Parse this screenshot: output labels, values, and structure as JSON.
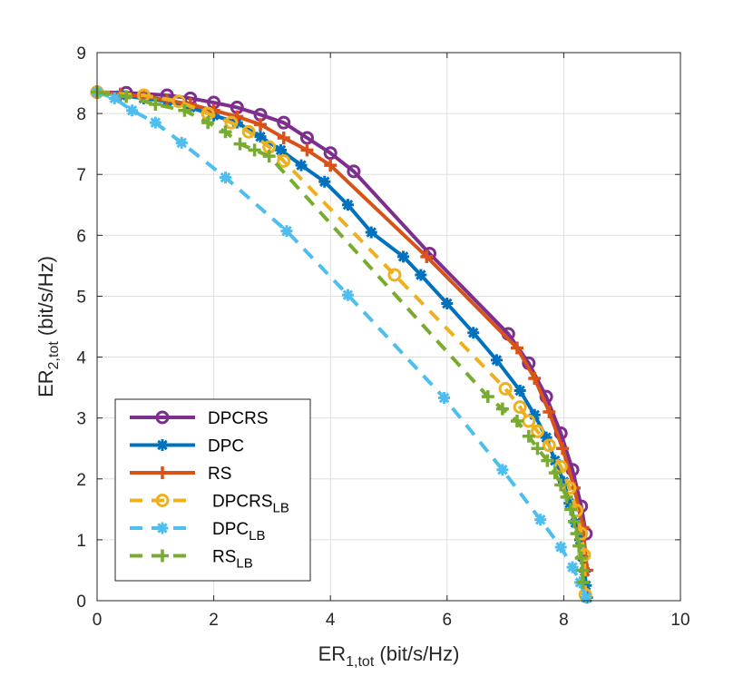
{
  "chart_data": {
    "type": "line",
    "title": "",
    "xlabel": {
      "main": "ER",
      "sub": "1,tot",
      "unit": " (bit/s/Hz)"
    },
    "ylabel": {
      "main": "ER",
      "sub": "2,tot",
      "unit": " (bit/s/Hz)"
    },
    "xlim": [
      0,
      10
    ],
    "ylim": [
      0,
      9
    ],
    "xticks": [
      "0",
      "2",
      "4",
      "6",
      "8",
      "10"
    ],
    "yticks": [
      "0",
      "1",
      "2",
      "3",
      "4",
      "5",
      "6",
      "7",
      "8",
      "9"
    ],
    "grid": true,
    "legend_position": "bottom-left",
    "series": [
      {
        "name": "DPCRS",
        "sub": "",
        "color": "#7E2F8E",
        "marker": "circle",
        "dashed": false,
        "x": [
          0.0,
          0.5,
          1.2,
          1.6,
          2.0,
          2.4,
          2.8,
          3.2,
          3.6,
          4.0,
          4.4,
          5.7,
          7.05,
          7.4,
          7.7,
          7.95,
          8.15,
          8.3,
          8.38
        ],
        "y": [
          8.35,
          8.34,
          8.3,
          8.25,
          8.18,
          8.1,
          7.98,
          7.85,
          7.6,
          7.35,
          7.05,
          5.7,
          4.38,
          3.9,
          3.35,
          2.75,
          2.15,
          1.55,
          1.1
        ]
      },
      {
        "name": "DPC",
        "sub": "",
        "color": "#0072BD",
        "marker": "asterisk",
        "dashed": false,
        "x": [
          0.0,
          0.4,
          0.8,
          1.2,
          1.6,
          2.0,
          2.4,
          2.8,
          3.15,
          3.5,
          3.9,
          4.3,
          4.7,
          5.25,
          5.55,
          6.0,
          6.45,
          6.85,
          7.25,
          7.5,
          7.7,
          7.85,
          8.0,
          8.1,
          8.2,
          8.28,
          8.32,
          8.36,
          8.38,
          8.4
        ],
        "y": [
          8.35,
          8.3,
          8.25,
          8.2,
          8.1,
          7.97,
          7.85,
          7.62,
          7.4,
          7.15,
          6.88,
          6.5,
          6.05,
          5.65,
          5.35,
          4.88,
          4.4,
          3.95,
          3.45,
          3.05,
          2.68,
          2.3,
          1.95,
          1.6,
          1.28,
          1.0,
          0.72,
          0.48,
          0.25,
          0.05
        ]
      },
      {
        "name": "RS",
        "sub": "",
        "color": "#D95319",
        "marker": "plus",
        "dashed": false,
        "x": [
          0.0,
          0.4,
          0.8,
          1.2,
          1.6,
          2.0,
          2.4,
          2.8,
          3.2,
          3.6,
          4.0,
          5.65,
          7.2,
          7.5,
          7.75,
          7.98,
          8.18,
          8.33,
          8.4
        ],
        "y": [
          8.35,
          8.32,
          8.28,
          8.22,
          8.15,
          8.05,
          7.95,
          7.82,
          7.6,
          7.4,
          7.15,
          5.65,
          4.15,
          3.65,
          3.1,
          2.5,
          1.85,
          1.2,
          0.5
        ]
      },
      {
        "name": "DPCRS",
        "sub": "LB",
        "color": "#EDB120",
        "marker": "circle",
        "dashed": true,
        "x": [
          0.0,
          0.8,
          1.4,
          1.9,
          2.3,
          2.6,
          2.95,
          3.2,
          5.1,
          7.0,
          7.25,
          7.4,
          7.55,
          7.75,
          7.95,
          8.1,
          8.22,
          8.3,
          8.35,
          8.37
        ],
        "y": [
          8.35,
          8.3,
          8.2,
          8.0,
          7.85,
          7.7,
          7.45,
          7.22,
          5.35,
          3.48,
          3.18,
          2.95,
          2.78,
          2.55,
          2.2,
          1.85,
          1.48,
          1.1,
          0.75,
          0.1
        ]
      },
      {
        "name": "DPC",
        "sub": "LB",
        "color": "#4DBEEE",
        "marker": "asterisk",
        "dashed": true,
        "x": [
          0.0,
          0.3,
          0.6,
          1.0,
          1.45,
          2.2,
          3.25,
          4.3,
          5.95,
          6.95,
          7.6,
          7.95,
          8.15,
          8.28,
          8.38
        ],
        "y": [
          8.35,
          8.25,
          8.05,
          7.85,
          7.52,
          6.95,
          6.07,
          5.02,
          3.33,
          2.15,
          1.33,
          0.88,
          0.55,
          0.3,
          0.05
        ]
      },
      {
        "name": "RS",
        "sub": "LB",
        "color": "#77AC30",
        "marker": "plus",
        "dashed": true,
        "x": [
          0.0,
          0.5,
          1.0,
          1.5,
          1.9,
          2.2,
          2.45,
          2.7,
          2.95,
          6.7,
          6.95,
          7.2,
          7.4,
          7.55,
          7.72,
          7.85,
          7.95,
          8.05,
          8.12,
          8.18,
          8.22,
          8.26,
          8.3,
          8.32,
          8.33
        ],
        "y": [
          8.35,
          8.28,
          8.15,
          8.05,
          7.85,
          7.7,
          7.5,
          7.4,
          7.3,
          3.35,
          3.15,
          2.95,
          2.7,
          2.5,
          2.3,
          2.1,
          1.9,
          1.7,
          1.5,
          1.3,
          1.1,
          0.9,
          0.7,
          0.5,
          0.3
        ]
      }
    ]
  }
}
